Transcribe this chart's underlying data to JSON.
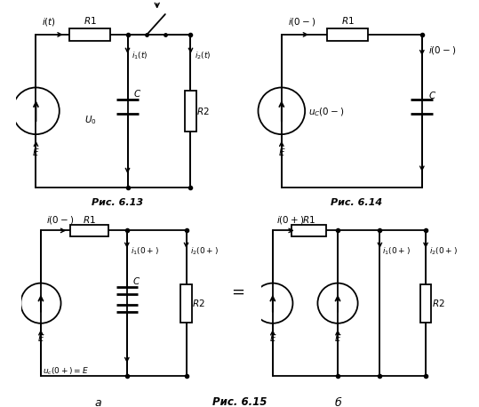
{
  "fig_width": 5.39,
  "fig_height": 4.58,
  "bg_color": "#ffffff",
  "line_color": "#000000",
  "lw": 1.3,
  "fig13_label": "Рис. 6.13",
  "fig14_label": "Рис. 6.14",
  "fig15_label": "Рис. 6.15",
  "fig15a_label": "а",
  "fig15b_label": "б"
}
